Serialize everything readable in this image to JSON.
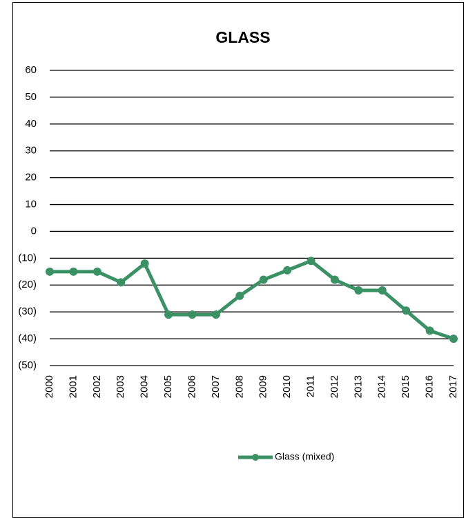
{
  "chart_data": {
    "type": "line",
    "title": "GLASS",
    "categories": [
      "2000",
      "2001",
      "2002",
      "2003",
      "2004",
      "2005",
      "2006",
      "2007",
      "2008",
      "2009",
      "2010",
      "2011",
      "2012",
      "2013",
      "2014",
      "2015",
      "2016",
      "2017"
    ],
    "series": [
      {
        "name": "Glass (mixed)",
        "color": "#3a9264",
        "values": [
          -15,
          -15,
          -15,
          -19,
          -12,
          -31,
          -31,
          -31,
          -24,
          -18,
          -14.5,
          -11,
          -18,
          -22,
          -22,
          -29.5,
          -37,
          -40
        ]
      }
    ],
    "ylim": [
      -50,
      60
    ],
    "yticks": [
      {
        "value": -50,
        "label": "(50)"
      },
      {
        "value": -40,
        "label": "(40)"
      },
      {
        "value": -30,
        "label": "(30)"
      },
      {
        "value": -20,
        "label": "(20)"
      },
      {
        "value": -10,
        "label": "(10)"
      },
      0,
      10,
      20,
      30,
      40,
      50,
      60
    ],
    "grid": true,
    "legend": "bottom"
  }
}
